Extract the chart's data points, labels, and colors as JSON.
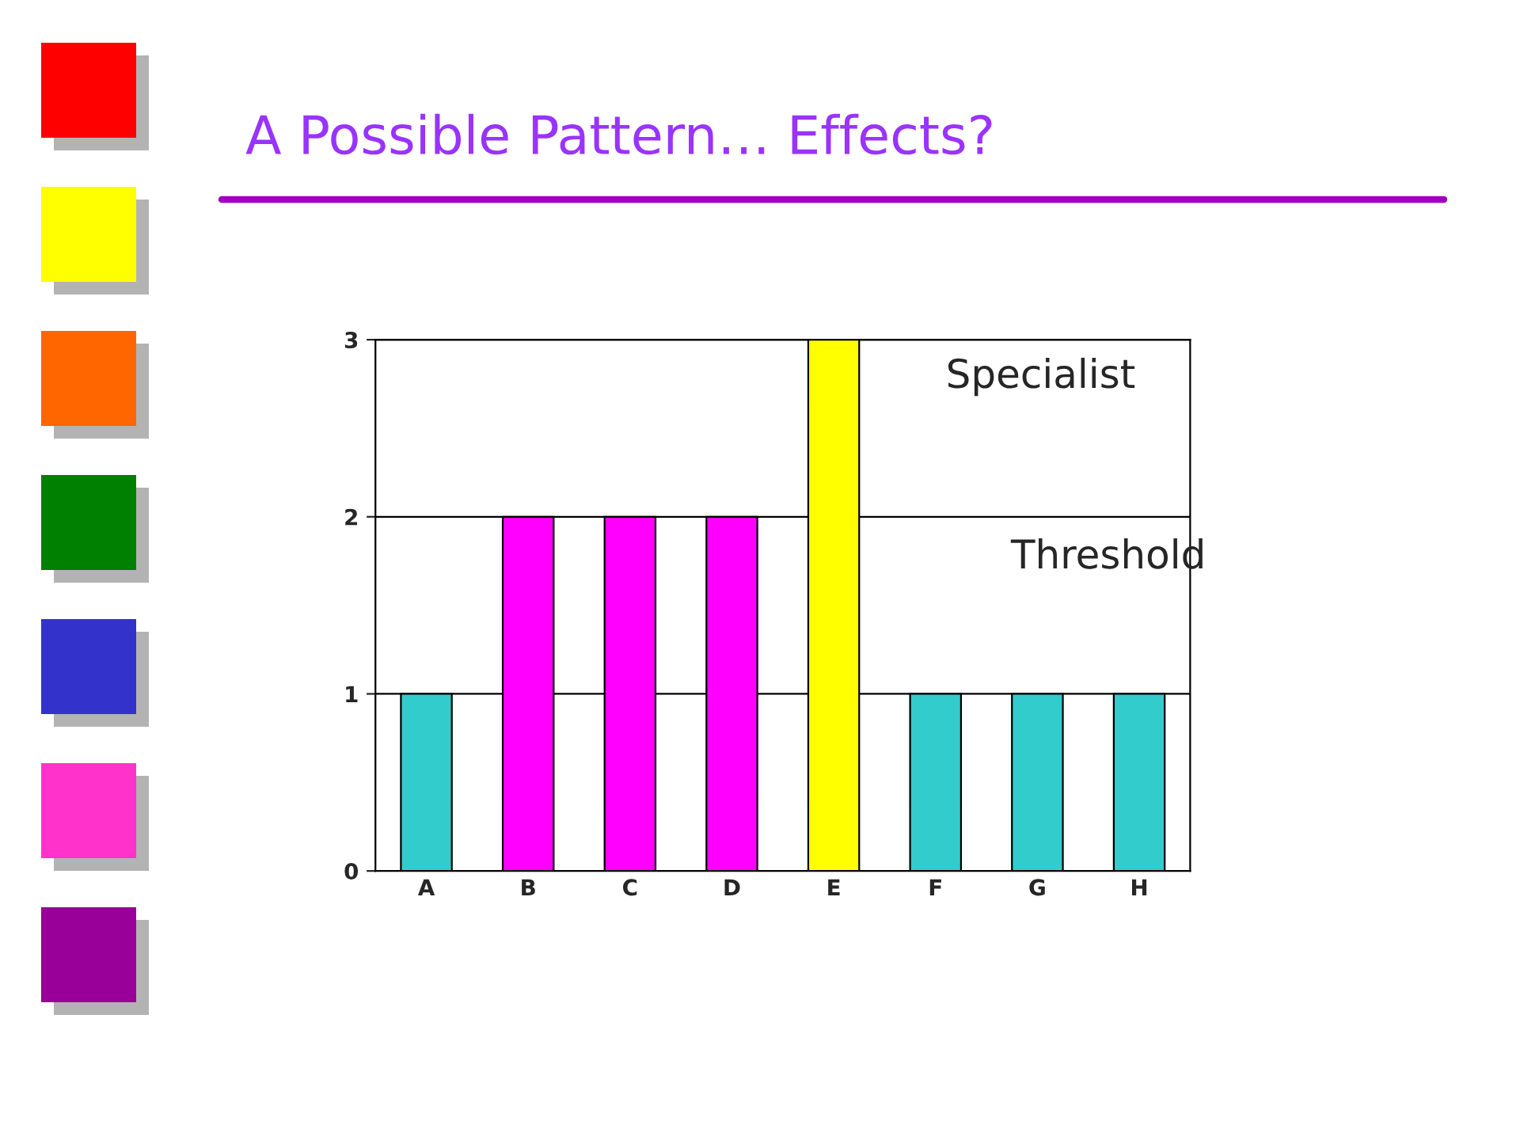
{
  "chart_data": {
    "type": "bar",
    "title": "A Possible Pattern… Effects?",
    "categories": [
      "A",
      "B",
      "C",
      "D",
      "E",
      "F",
      "G",
      "H"
    ],
    "values": [
      1,
      2,
      2,
      2,
      3,
      1,
      1,
      1
    ],
    "colors": [
      "#33cccc",
      "#ff00ff",
      "#ff00ff",
      "#ff00ff",
      "#ffff00",
      "#33cccc",
      "#33cccc",
      "#33cccc"
    ],
    "ylim": [
      0,
      3
    ],
    "yticks": [
      0,
      1,
      2,
      3
    ],
    "grid": "y",
    "annotations": [
      "Specialist",
      "Threshold"
    ]
  }
}
